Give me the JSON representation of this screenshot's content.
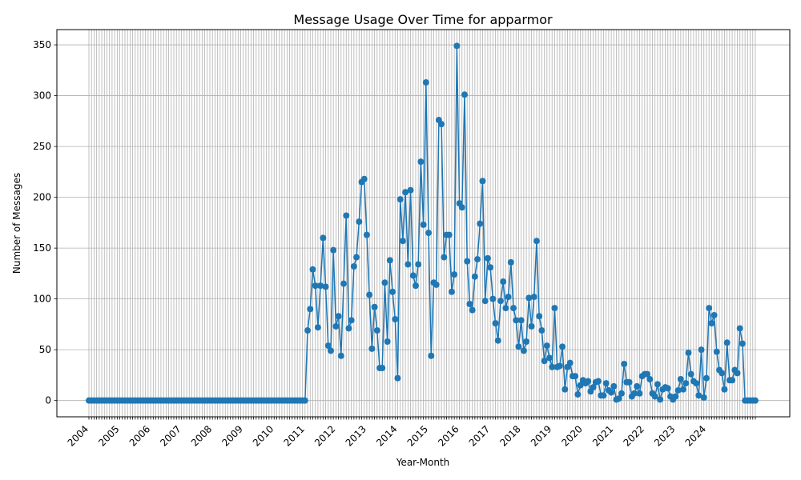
{
  "chart_data": {
    "type": "line",
    "title": "Message Usage Over Time for apparmor",
    "xlabel": "Year-Month",
    "ylabel": "Number of Messages",
    "ylim": [
      -16,
      365
    ],
    "yticks": [
      0,
      50,
      100,
      150,
      200,
      250,
      300,
      350
    ],
    "grid": true,
    "start_month": "2004-01",
    "year_ticks": [
      "2004",
      "2005",
      "2006",
      "2007",
      "2008",
      "2009",
      "2010",
      "2011",
      "2012",
      "2013",
      "2014",
      "2015",
      "2016",
      "2017",
      "2018",
      "2019",
      "2020",
      "2021",
      "2022",
      "2023",
      "2024"
    ],
    "color": "#1f77b4",
    "series": [
      {
        "values": [
          0,
          0,
          0,
          0,
          0,
          0,
          0,
          0,
          0,
          0,
          0,
          0,
          0,
          0,
          0,
          0,
          0,
          0,
          0,
          0,
          0,
          0,
          0,
          0,
          0,
          0,
          0,
          0,
          0,
          0,
          0,
          0,
          0,
          0,
          0,
          0,
          0,
          0,
          0,
          0,
          0,
          0,
          0,
          0,
          0,
          0,
          0,
          0,
          0,
          0,
          0,
          0,
          0,
          0,
          0,
          0,
          0,
          0,
          0,
          0,
          0,
          0,
          0,
          0,
          0,
          0,
          0,
          0,
          0,
          0,
          0,
          0,
          0,
          0,
          0,
          0,
          0,
          0,
          0,
          0,
          0,
          0,
          0,
          0,
          0,
          69,
          90,
          129,
          113,
          72,
          113,
          160,
          112,
          54,
          49,
          148,
          73,
          83,
          44,
          115,
          182,
          71,
          79,
          132,
          141,
          176,
          215,
          218,
          163,
          104,
          51,
          92,
          69,
          32,
          32,
          116,
          58,
          138,
          107,
          80,
          22,
          198,
          157,
          205,
          134,
          207,
          123,
          113,
          134,
          235,
          173,
          313,
          165,
          44,
          116,
          114,
          276,
          272,
          141,
          163,
          163,
          107,
          124,
          349,
          194,
          190,
          301,
          137,
          95,
          89,
          122,
          139,
          174,
          216,
          98,
          140,
          131,
          100,
          76,
          59,
          98,
          117,
          91,
          102,
          136,
          91,
          79,
          53,
          79,
          49,
          58,
          101,
          73,
          102,
          157,
          83,
          69,
          39,
          54,
          42,
          33,
          91,
          33,
          34,
          53,
          11,
          33,
          37,
          24,
          24,
          6,
          15,
          20,
          17,
          19,
          9,
          13,
          18,
          19,
          5,
          5,
          17,
          10,
          8,
          14,
          1,
          2,
          7,
          36,
          18,
          18,
          4,
          7,
          14,
          7,
          24,
          26,
          26,
          21,
          7,
          4,
          16,
          1,
          11,
          13,
          12,
          4,
          1,
          4,
          10,
          21,
          11,
          17,
          47,
          26,
          19,
          17,
          5,
          50,
          3,
          22,
          91,
          76,
          84,
          48,
          30,
          27,
          11,
          57,
          20,
          20,
          30,
          27,
          71,
          56,
          0,
          0,
          0,
          0,
          0
        ]
      }
    ]
  }
}
